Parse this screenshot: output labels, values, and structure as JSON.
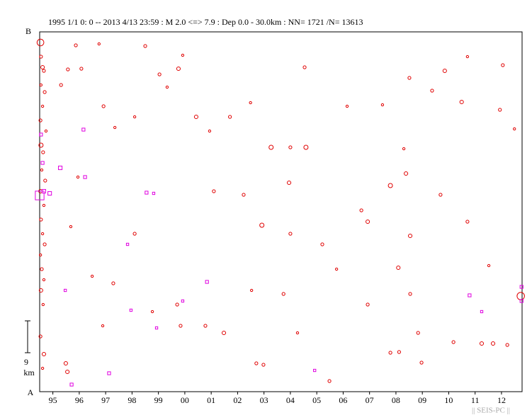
{
  "chart_data": {
    "type": "scatter",
    "title": "1995 1/1 0: 0 -- 2013 4/13 23:59  : M 2.0 <=> 7.9   : Dep 0.0 - 30.0km :  NN= 1721 /N= 13613",
    "ylabel_top": "B",
    "ylabel_bottom": "A",
    "scale_bar": {
      "value": 9,
      "unit": "km"
    },
    "footer": "|| SEIS-PC ||",
    "xlim": [
      1995,
      2013.28
    ],
    "ylim": [
      0,
      101.6
    ],
    "xticks": [
      {
        "value": 1995.5,
        "label": "95"
      },
      {
        "value": 1996.5,
        "label": "96"
      },
      {
        "value": 1997.5,
        "label": "97"
      },
      {
        "value": 1998.5,
        "label": "98"
      },
      {
        "value": 1999.5,
        "label": "99"
      },
      {
        "value": 2000.5,
        "label": "00"
      },
      {
        "value": 2001.5,
        "label": "01"
      },
      {
        "value": 2002.5,
        "label": "02"
      },
      {
        "value": 2003.5,
        "label": "03"
      },
      {
        "value": 2004.5,
        "label": "04"
      },
      {
        "value": 2005.5,
        "label": "05"
      },
      {
        "value": 2006.5,
        "label": "06"
      },
      {
        "value": 2007.5,
        "label": "07"
      },
      {
        "value": 2008.5,
        "label": "08"
      },
      {
        "value": 2009.5,
        "label": "09"
      },
      {
        "value": 2010.5,
        "label": "10"
      },
      {
        "value": 2011.5,
        "label": "11"
      },
      {
        "value": 2012.5,
        "label": "12"
      }
    ],
    "series": [
      {
        "color": "#e00000",
        "marker": "circle",
        "x": [
          1995.03,
          1995.05,
          1995.11,
          1995.16,
          1995.05,
          1995.19,
          1995.11,
          1995.03,
          1995.24,
          1995.05,
          1995.13,
          1995.08,
          1995.21,
          1995.03,
          1995.16,
          1995.05,
          1995.11,
          1995.19,
          1995.03,
          1995.08,
          1995.16,
          1995.05,
          1995.13,
          1995.03,
          1995.16,
          1995.11,
          1996.07,
          1996.58,
          1997.25,
          1999.0,
          2000.42,
          2000.26,
          1999.54,
          1999.83,
          1997.42,
          1997.85,
          1998.6,
          2000.93,
          2001.44,
          2002.21,
          2002.99,
          2003.77,
          2004.5,
          2005.09,
          2005.04,
          2006.65,
          2007.99,
          2009.01,
          2010.35,
          2010.99,
          2011.21,
          2012.55,
          2012.99,
          2012.44,
          2009.87,
          2008.8,
          2008.29,
          2008.88,
          2004.45,
          2002.73,
          2001.6,
          2003.42,
          2004.5,
          2005.71,
          2007.19,
          2007.43,
          2009.04,
          2010.19,
          2011.21,
          2012.02,
          2008.59,
          2006.25,
          2004.24,
          2003.03,
          2000.21,
          1999.27,
          1997.39,
          2000.34,
          2001.28,
          2001.98,
          2003.21,
          2003.48,
          2004.77,
          2005.98,
          2008.29,
          2008.62,
          2009.47,
          2009.34,
          2010.68,
          2011.75,
          2012.18,
          2012.72,
          2013.23,
          2007.43,
          2009.04,
          1995.99,
          1996.05,
          1995.81,
          1996.37,
          1996.99,
          1997.79,
          1998.6,
          1996.18,
          1996.45
        ],
        "values": [
          98.6,
          94.6,
          91.6,
          90.6,
          86.6,
          84.6,
          80.6,
          76.6,
          73.6,
          69.6,
          67.6,
          62.6,
          59.6,
          56.6,
          52.6,
          48.6,
          44.6,
          41.6,
          38.6,
          34.6,
          31.6,
          28.6,
          24.6,
          15.6,
          10.6,
          6.6,
          91.0,
          91.2,
          98.2,
          97.6,
          95.0,
          91.2,
          89.6,
          86.0,
          80.6,
          74.6,
          77.6,
          77.6,
          73.6,
          77.6,
          81.6,
          69.0,
          69.0,
          69.0,
          91.6,
          80.6,
          81.0,
          88.6,
          90.6,
          81.8,
          94.6,
          92.2,
          74.2,
          79.6,
          85.0,
          68.6,
          58.2,
          61.6,
          59.0,
          55.6,
          56.6,
          47.0,
          44.6,
          41.6,
          51.2,
          48.0,
          44.0,
          55.6,
          48.0,
          35.6,
          35.0,
          34.6,
          27.6,
          28.6,
          24.6,
          22.6,
          18.6,
          18.6,
          18.6,
          16.6,
          8.0,
          7.6,
          16.6,
          3.0,
          11.0,
          11.2,
          8.2,
          16.6,
          14.0,
          13.6,
          13.6,
          13.2,
          27.0,
          24.6,
          27.6,
          8.0,
          5.6,
          86.6,
          97.8,
          32.6,
          30.6,
          44.6,
          46.6,
          60.6
        ],
        "sizes": [
          6.0,
          3.0,
          3.5,
          3.0,
          2.5,
          3.0,
          2.5,
          3.0,
          2.5,
          4.0,
          3.0,
          2.5,
          3.0,
          3.5,
          2.5,
          3.0,
          2.5,
          3.0,
          2.5,
          3.0,
          2.5,
          3.5,
          2.5,
          3.0,
          3.5,
          2.5,
          3.0,
          3.0,
          2.5,
          3.0,
          2.5,
          3.5,
          3.0,
          2.5,
          3.0,
          2.5,
          2.5,
          3.5,
          2.5,
          3.0,
          2.5,
          4.0,
          3.0,
          4.0,
          3.0,
          2.5,
          2.5,
          3.0,
          3.5,
          3.5,
          2.5,
          3.0,
          2.5,
          3.0,
          3.0,
          2.5,
          4.0,
          3.5,
          3.5,
          3.0,
          3.0,
          4.0,
          3.0,
          3.0,
          3.0,
          3.5,
          3.5,
          3.0,
          3.0,
          2.5,
          3.5,
          2.5,
          3.0,
          2.5,
          3.0,
          2.5,
          2.5,
          3.0,
          3.0,
          3.5,
          3.0,
          3.0,
          2.5,
          3.0,
          3.0,
          3.0,
          3.0,
          3.0,
          3.0,
          3.5,
          3.5,
          3.0,
          6.5,
          3.0,
          3.0,
          3.5,
          3.5,
          3.0,
          3.0,
          2.5,
          3.0,
          3.0,
          2.5,
          2.5
        ]
      },
      {
        "color": "#e000e0",
        "marker": "square",
        "x": [
          1995.0,
          1996.66,
          1995.78,
          1996.72,
          1999.05,
          1999.32,
          1998.33,
          2001.34,
          2000.42,
          1998.46,
          1999.43,
          1997.63,
          1996.21,
          2005.42,
          2011.29,
          2011.75,
          2013.26,
          2013.26,
          1995.16,
          1995.05,
          1995.11,
          1995.38,
          1995.97
        ],
        "values": [
          55.4,
          74.0,
          63.2,
          60.6,
          56.2,
          56.0,
          41.6,
          31.0,
          25.6,
          23.0,
          18.0,
          5.2,
          2.0,
          6.0,
          27.2,
          22.6,
          29.6,
          25.6,
          56.6,
          72.6,
          64.6,
          56.0,
          28.6
        ],
        "sizes": [
          7.5,
          3.0,
          3.5,
          3.0,
          3.0,
          2.5,
          2.5,
          3.0,
          2.5,
          2.5,
          2.5,
          3.0,
          3.0,
          2.5,
          3.0,
          2.5,
          3.0,
          3.0,
          3.5,
          3.0,
          3.0,
          3.5,
          2.5
        ]
      }
    ]
  }
}
